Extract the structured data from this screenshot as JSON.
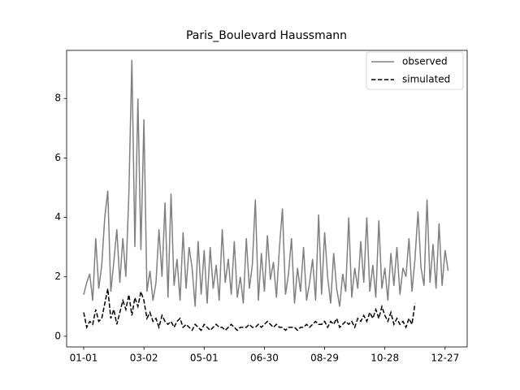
{
  "chart_data": {
    "type": "line",
    "title": "Paris_Boulevard Haussmann",
    "x": [
      0,
      3,
      6,
      9,
      12,
      15,
      18,
      21,
      24,
      27,
      30,
      33,
      36,
      39,
      42,
      45,
      48,
      51,
      54,
      57,
      60,
      63,
      66,
      69,
      72,
      75,
      78,
      81,
      84,
      87,
      90,
      93,
      96,
      99,
      102,
      105,
      108,
      111,
      114,
      117,
      120,
      123,
      126,
      129,
      132,
      135,
      138,
      141,
      144,
      147,
      150,
      153,
      156,
      159,
      162,
      165,
      168,
      171,
      174,
      177,
      180,
      183,
      186,
      189,
      192,
      195,
      198,
      201,
      204,
      207,
      210,
      213,
      216,
      219,
      222,
      225,
      228,
      231,
      234,
      237,
      240,
      243,
      246,
      249,
      252,
      255,
      258,
      261,
      264,
      267,
      270,
      273,
      276,
      279,
      282,
      285,
      288,
      291,
      294,
      297,
      300,
      303,
      306,
      309,
      312,
      315,
      318,
      321,
      324,
      327,
      330,
      333,
      336,
      339,
      342,
      345,
      348,
      351,
      354,
      357,
      360,
      363
    ],
    "series": [
      {
        "name": "observed",
        "color": "#808080",
        "linestyle": "solid",
        "values": [
          1.4,
          1.8,
          2.1,
          1.2,
          3.3,
          1.6,
          2.4,
          4.0,
          4.9,
          1.5,
          2.5,
          3.6,
          1.8,
          3.3,
          2.0,
          4.8,
          9.3,
          3.0,
          8.0,
          2.9,
          7.3,
          1.5,
          2.2,
          1.2,
          1.8,
          3.6,
          2.0,
          4.5,
          1.3,
          4.8,
          1.7,
          2.6,
          1.2,
          3.5,
          1.6,
          3.0,
          2.3,
          1.0,
          3.2,
          1.4,
          2.9,
          1.1,
          3.0,
          1.6,
          2.4,
          1.2,
          3.6,
          1.8,
          2.6,
          1.4,
          3.2,
          1.3,
          2.0,
          1.1,
          3.3,
          1.6,
          2.4,
          4.6,
          1.2,
          2.8,
          1.5,
          3.4,
          1.9,
          2.5,
          1.3,
          3.0,
          4.3,
          1.4,
          2.1,
          3.3,
          1.1,
          2.3,
          1.5,
          3.0,
          1.2,
          1.8,
          2.6,
          1.2,
          4.1,
          1.4,
          3.5,
          2.0,
          1.1,
          2.8,
          1.6,
          1.0,
          2.1,
          1.5,
          4.0,
          1.3,
          2.3,
          1.6,
          3.2,
          1.8,
          4.0,
          1.5,
          2.4,
          1.3,
          3.9,
          1.6,
          2.3,
          1.2,
          2.8,
          1.7,
          3.0,
          1.4,
          2.3,
          2.0,
          3.3,
          1.5,
          2.6,
          4.2,
          2.3,
          1.7,
          4.6,
          1.8,
          3.1,
          1.6,
          3.8,
          1.7,
          2.9,
          2.2
        ]
      },
      {
        "name": "simulated",
        "color": "#000000",
        "linestyle": "dashed",
        "values": [
          0.8,
          0.3,
          0.5,
          0.4,
          0.9,
          0.5,
          0.6,
          1.1,
          1.6,
          0.6,
          0.9,
          0.4,
          0.8,
          1.2,
          0.9,
          1.4,
          0.7,
          1.3,
          1.0,
          1.5,
          1.2,
          0.6,
          0.8,
          0.5,
          0.6,
          0.3,
          0.7,
          0.5,
          0.4,
          0.5,
          0.3,
          0.5,
          0.6,
          0.3,
          0.4,
          0.3,
          0.2,
          0.4,
          0.3,
          0.2,
          0.4,
          0.3,
          0.2,
          0.3,
          0.4,
          0.3,
          0.3,
          0.2,
          0.3,
          0.4,
          0.3,
          0.2,
          0.3,
          0.3,
          0.3,
          0.4,
          0.3,
          0.3,
          0.4,
          0.3,
          0.4,
          0.5,
          0.4,
          0.3,
          0.4,
          0.3,
          0.3,
          0.2,
          0.3,
          0.3,
          0.3,
          0.2,
          0.3,
          0.3,
          0.4,
          0.3,
          0.4,
          0.5,
          0.4,
          0.4,
          0.5,
          0.3,
          0.5,
          0.4,
          0.6,
          0.3,
          0.4,
          0.5,
          0.4,
          0.5,
          0.3,
          0.6,
          0.5,
          0.7,
          0.5,
          0.8,
          0.6,
          0.9,
          0.6,
          1.0,
          0.7,
          0.5,
          0.8,
          0.4,
          0.6,
          0.4,
          0.5,
          0.3,
          0.6,
          0.4,
          1.1,
          null,
          null,
          null,
          null,
          null,
          null,
          null,
          null,
          null,
          null,
          null
        ]
      }
    ],
    "xlim": [
      -17,
      382
    ],
    "xticks": [
      {
        "value": 0,
        "label": "01-01"
      },
      {
        "value": 60,
        "label": "03-02"
      },
      {
        "value": 120,
        "label": "05-01"
      },
      {
        "value": 180,
        "label": "06-30"
      },
      {
        "value": 240,
        "label": "08-29"
      },
      {
        "value": 300,
        "label": "10-28"
      },
      {
        "value": 360,
        "label": "12-27"
      }
    ],
    "ylim": [
      -0.36,
      9.62
    ],
    "yticks": [
      0,
      2,
      4,
      6,
      8
    ],
    "legend": "upper right"
  }
}
